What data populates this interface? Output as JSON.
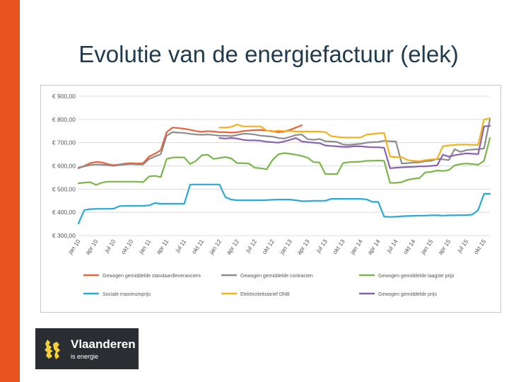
{
  "slide": {
    "title": "Evolutie van de energiefactuur (elek)",
    "accent_color": "#e8531f"
  },
  "logo": {
    "name": "Vlaanderen",
    "subtitle": "is energie",
    "bg_color": "#2a2e33"
  },
  "chart_data": {
    "type": "line",
    "title": "",
    "xlabel": "",
    "ylabel": "",
    "ylim": [
      300,
      900
    ],
    "grid": true,
    "legend_position": "bottom",
    "x_count": 71,
    "x_tick_labels": [
      "jan 10",
      "apr 10",
      "jul 10",
      "okt 10",
      "jan 11",
      "apr 11",
      "jul 11",
      "okt 11",
      "jan 12",
      "apr 12",
      "jul 12",
      "okt 12",
      "jan 13",
      "apr 13",
      "jul 13",
      "okt 13",
      "jan 14",
      "apr 14",
      "jul 14",
      "okt 14",
      "jan 15",
      "apr 15",
      "jul 15",
      "okt 15"
    ],
    "y_tick_labels": [
      "€ 900,00",
      "€ 800,00",
      "€ 700,00",
      "€ 600,00",
      "€ 500,00",
      "€ 400,00",
      "€ 300,00"
    ],
    "series": [
      {
        "name": "Gewogen gemiddelde standaardleveranciers",
        "color": "#e8643c",
        "start_index": 0,
        "values": [
          590,
          600,
          612,
          617,
          615,
          608,
          603,
          606,
          610,
          612,
          610,
          612,
          640,
          652,
          668,
          745,
          765,
          763,
          760,
          755,
          750,
          747,
          750,
          748,
          745,
          745,
          743,
          745,
          750,
          752,
          754,
          755,
          752,
          750,
          745,
          748,
          755,
          765,
          775
        ]
      },
      {
        "name": "Gewogen gemiddelde contracten",
        "color": "#8c8c8c",
        "start_index": 0,
        "values": [
          592,
          598,
          604,
          606,
          605,
          603,
          600,
          604,
          606,
          608,
          606,
          606,
          630,
          640,
          650,
          730,
          745,
          743,
          742,
          738,
          735,
          734,
          735,
          733,
          730,
          730,
          728,
          733,
          738,
          738,
          735,
          730,
          728,
          726,
          720,
          718,
          725,
          733,
          735,
          715,
          712,
          716,
          706,
          705,
          703,
          692,
          690,
          693,
          695,
          700,
          702,
          703,
          708,
          706,
          705,
          610,
          612,
          615,
          615,
          620,
          622,
          630,
          628,
          625,
          672,
          660,
          668,
          670,
          672,
          675,
          800
        ]
      },
      {
        "name": "Gewogen gemiddelde laagste prijs",
        "color": "#7ab648",
        "start_index": 0,
        "values": [
          525,
          528,
          530,
          518,
          528,
          532,
          532,
          532,
          532,
          532,
          532,
          530,
          555,
          557,
          552,
          630,
          636,
          637,
          636,
          608,
          622,
          646,
          648,
          630,
          634,
          638,
          632,
          612,
          612,
          610,
          592,
          590,
          585,
          625,
          650,
          655,
          652,
          648,
          643,
          635,
          616,
          615,
          565,
          565,
          565,
          612,
          616,
          617,
          618,
          622,
          622,
          623,
          622,
          527,
          527,
          530,
          540,
          545,
          547,
          572,
          574,
          580,
          578,
          582,
          602,
          608,
          610,
          608,
          605,
          622,
          720
        ]
      },
      {
        "name": "Sociale maximumprijs",
        "color": "#29a9d8",
        "start_index": 0,
        "values": [
          352,
          410,
          414,
          415,
          415,
          415,
          416,
          427,
          428,
          428,
          428,
          428,
          430,
          440,
          437,
          437,
          437,
          437,
          437,
          520,
          520,
          520,
          520,
          520,
          520,
          465,
          455,
          452,
          452,
          452,
          452,
          452,
          453,
          454,
          455,
          455,
          455,
          452,
          448,
          448,
          450,
          450,
          450,
          458,
          458,
          458,
          458,
          458,
          458,
          456,
          445,
          445,
          382,
          380,
          381,
          383,
          384,
          385,
          386,
          386,
          387,
          387,
          386,
          387,
          387,
          388,
          388,
          390,
          410,
          480,
          480
        ]
      },
      {
        "name": "Elektriciteitstarief DNB",
        "color": "#f5b21a",
        "start_index": 24,
        "values": [
          765,
          765,
          768,
          778,
          770,
          770,
          770,
          770,
          752,
          748,
          752,
          750,
          750,
          748,
          748,
          748,
          748,
          748,
          745,
          728,
          725,
          722,
          722,
          722,
          722,
          735,
          737,
          740,
          742,
          640,
          638,
          638,
          625,
          622,
          620,
          625,
          628,
          630,
          685,
          688,
          690,
          692,
          692,
          690,
          690,
          800,
          805
        ]
      },
      {
        "name": "Gewogen gemiddelde prijs",
        "color": "#8a62b0",
        "start_index": 24,
        "values": [
          720,
          718,
          720,
          718,
          712,
          710,
          710,
          708,
          704,
          702,
          700,
          705,
          712,
          720,
          705,
          702,
          700,
          698,
          688,
          686,
          684,
          682,
          682,
          685,
          684,
          682,
          680,
          680,
          678,
          590,
          592,
          594,
          595,
          596,
          598,
          598,
          600,
          602,
          648,
          640,
          646,
          650,
          654,
          652,
          651,
          770,
          772
        ]
      }
    ]
  }
}
